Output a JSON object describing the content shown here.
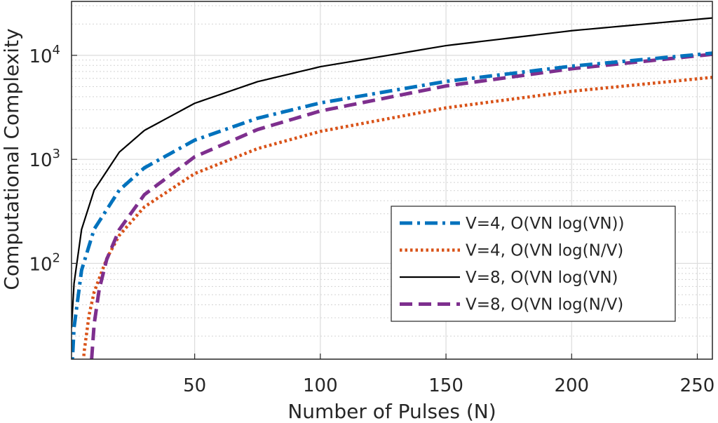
{
  "chart_data": {
    "type": "line",
    "title": "",
    "xlabel": "Number of Pulses (N)",
    "ylabel": "Computational Complexity",
    "x_range": [
      1,
      256
    ],
    "y_range": [
      12,
      33000
    ],
    "y_scale": "log",
    "grid": true,
    "x_ticks": [
      50,
      100,
      150,
      200,
      250
    ],
    "x_tick_labels": [
      "50",
      "100",
      "150",
      "200",
      "250"
    ],
    "y_ticks": [
      100,
      1000,
      10000
    ],
    "y_tick_bases": [
      "10",
      "10",
      "10"
    ],
    "y_tick_exponents": [
      "2",
      "3",
      "4"
    ],
    "legend_position": "lower-right",
    "series": [
      {
        "name": "V=4, O(VN log(VN))",
        "color": "#0072BD",
        "style": "dash-dot",
        "x": [
          1,
          2,
          5,
          10,
          20,
          30,
          50,
          75,
          100,
          150,
          200,
          256
        ],
        "y": [
          8,
          24,
          86,
          213,
          506,
          829,
          1530,
          2484,
          3487,
          5615,
          7871,
          10494
        ]
      },
      {
        "name": "V=4, O(VN log(N/V)",
        "color": "#D95319",
        "style": "dotted",
        "x": [
          5,
          6,
          8,
          10,
          15,
          20,
          30,
          50,
          75,
          100,
          150,
          200,
          256
        ],
        "y": [
          6.4,
          14,
          32,
          53,
          111,
          186,
          349,
          730,
          1268,
          1858,
          3128,
          4515,
          6144
        ]
      },
      {
        "name": "V=8, O(VN log(VN)",
        "color": "#000000",
        "style": "solid",
        "x": [
          1,
          2,
          5,
          10,
          20,
          30,
          50,
          75,
          100,
          150,
          200,
          256
        ],
        "y": [
          24,
          64,
          212,
          506,
          1172,
          1898,
          3460,
          5581,
          7775,
          12398,
          17255,
          22880
        ]
      },
      {
        "name": "V=8, O(VN log(N/V)",
        "color": "#7E2F8E",
        "style": "dashed",
        "x": [
          9,
          10,
          12,
          15,
          20,
          30,
          50,
          75,
          100,
          150,
          200,
          256
        ],
        "y": [
          12,
          26,
          56,
          109,
          211,
          458,
          1058,
          1934,
          2915,
          5078,
          7431,
          10240
        ]
      }
    ]
  }
}
